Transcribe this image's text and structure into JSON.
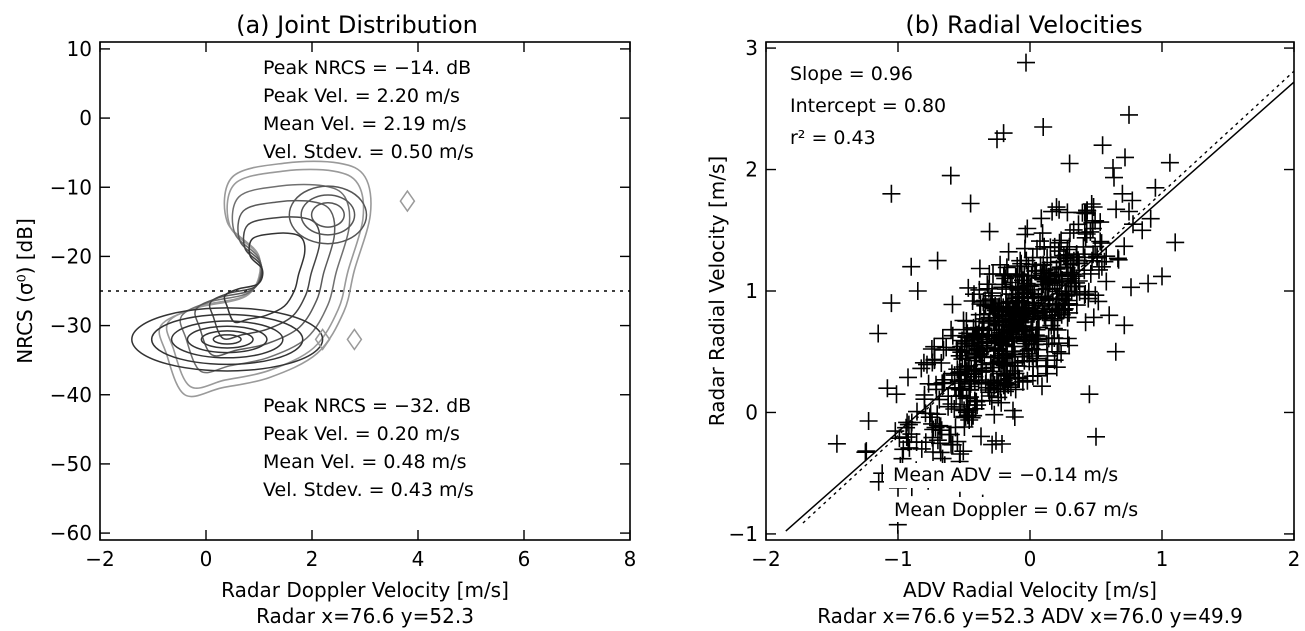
{
  "chart_data": [
    {
      "type": "contour",
      "title": "(a) Joint Distribution",
      "xlabel": "Radar Doppler Velocity [m/s]",
      "ylabel": "NRCS (σ⁰) [dB]",
      "subtitle": "Radar x=76.6 y=52.3",
      "xlim": [
        -2,
        8
      ],
      "ylim": [
        -61,
        11
      ],
      "xticks": [
        "−2",
        "0",
        "2",
        "4",
        "6",
        "8"
      ],
      "xtick_values": [
        -2,
        0,
        2,
        4,
        6,
        8
      ],
      "yticks": [
        "10",
        "0",
        "−10",
        "−20",
        "−30",
        "−40",
        "−50",
        "−60"
      ],
      "ytick_values": [
        10,
        0,
        -10,
        -20,
        -30,
        -40,
        -50,
        -60
      ],
      "threshold_line": -25,
      "annotations_upper": [
        "Peak NRCS = −14. dB",
        "Peak Vel. =  2.20 m/s",
        "Mean Vel. =  2.19 m/s",
        "Vel. Stdev. =  0.50 m/s"
      ],
      "annotations_lower": [
        "Peak NRCS = −32. dB",
        "Peak Vel. =  0.20 m/s",
        "Mean Vel. =  0.48 m/s",
        "Vel. Stdev. =  0.43 m/s"
      ],
      "modes": [
        {
          "peak_vel": 0.2,
          "peak_nrcs": -32
        },
        {
          "peak_vel": 2.2,
          "peak_nrcs": -14
        }
      ]
    },
    {
      "type": "scatter",
      "title": "(b) Radial Velocities",
      "xlabel": "ADV Radial Velocity [m/s]",
      "ylabel": "Radar Radial Velocity [m/s]",
      "subtitle": "Radar x=76.6 y=52.3 ADV x=76.0 y=49.9",
      "xlim": [
        -2,
        2
      ],
      "ylim": [
        -1.05,
        3.05
      ],
      "xticks": [
        "−2",
        "−1",
        "0",
        "1",
        "2"
      ],
      "xtick_values": [
        -2,
        -1,
        0,
        1,
        2
      ],
      "yticks": [
        "−1",
        "0",
        "1",
        "2",
        "3"
      ],
      "ytick_values": [
        -1,
        0,
        1,
        2,
        3
      ],
      "stats": [
        "Slope = 0.96",
        "Intercept = 0.80",
        "r² = 0.43"
      ],
      "means": [
        "Mean ADV = −0.14 m/s",
        "Mean Doppler =  0.67 m/s"
      ],
      "fit_line": {
        "slope": 0.96,
        "intercept": 0.8
      },
      "one_to_one_offset": 0.67,
      "outliers": [
        [
          -0.03,
          2.88
        ],
        [
          -1.05,
          1.8
        ],
        [
          -0.6,
          1.95
        ],
        [
          -0.45,
          1.72
        ],
        [
          0.75,
          2.45
        ],
        [
          0.72,
          2.1
        ],
        [
          0.55,
          2.2
        ],
        [
          0.85,
          1.5
        ],
        [
          1.0,
          1.12
        ],
        [
          1.1,
          1.4
        ],
        [
          0.65,
          0.5
        ],
        [
          0.78,
          1.55
        ],
        [
          -1.15,
          0.65
        ],
        [
          -1.05,
          0.9
        ],
        [
          -1.12,
          -0.5
        ],
        [
          -1.0,
          -0.62
        ],
        [
          -0.9,
          1.2
        ],
        [
          -0.85,
          1.0
        ],
        [
          -0.82,
          -0.3
        ],
        [
          0.45,
          0.15
        ],
        [
          -0.25,
          2.25
        ],
        [
          -0.7,
          1.25
        ],
        [
          0.3,
          2.05
        ],
        [
          0.1,
          2.35
        ],
        [
          -0.2,
          2.3
        ],
        [
          0.95,
          1.85
        ],
        [
          0.7,
          1.8
        ],
        [
          -1.08,
          0.2
        ],
        [
          0.6,
          0.8
        ],
        [
          0.5,
          -0.2
        ]
      ]
    }
  ]
}
